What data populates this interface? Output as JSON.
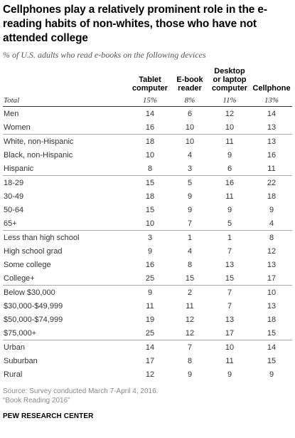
{
  "title": "Cellphones play a relatively prominent role in the e-reading habits of non-whites, those who have not attended college",
  "subtitle": "% of U.S. adults who read e-books on the following devices",
  "columns": {
    "tablet_l1": "Tablet",
    "tablet_l2": "computer",
    "ebook_l1": "E-book",
    "ebook_l2": "reader",
    "desktop_l1": "Desktop",
    "desktop_l2": "or laptop",
    "desktop_l3": "computer",
    "cell_l1": "Cellphone"
  },
  "total": {
    "label": "Total",
    "tablet": "15%",
    "ebook": "8%",
    "desktop": "11%",
    "cell": "13%"
  },
  "rows": [
    {
      "label": "Men",
      "tablet": "14",
      "ebook": "6",
      "desktop": "12",
      "cell": "14"
    },
    {
      "label": "Women",
      "tablet": "16",
      "ebook": "10",
      "desktop": "10",
      "cell": "13"
    },
    {
      "label": "White, non-Hispanic",
      "tablet": "18",
      "ebook": "10",
      "desktop": "11",
      "cell": "13"
    },
    {
      "label": "Black, non-Hispanic",
      "tablet": "10",
      "ebook": "4",
      "desktop": "9",
      "cell": "16"
    },
    {
      "label": "Hispanic",
      "tablet": "8",
      "ebook": "3",
      "desktop": "6",
      "cell": "11"
    },
    {
      "label": "18-29",
      "tablet": "15",
      "ebook": "5",
      "desktop": "16",
      "cell": "22"
    },
    {
      "label": "30-49",
      "tablet": "18",
      "ebook": "9",
      "desktop": "11",
      "cell": "18"
    },
    {
      "label": "50-64",
      "tablet": "15",
      "ebook": "9",
      "desktop": "9",
      "cell": "9"
    },
    {
      "label": "65+",
      "tablet": "10",
      "ebook": "7",
      "desktop": "5",
      "cell": "4"
    },
    {
      "label": "Less than high school",
      "tablet": "3",
      "ebook": "1",
      "desktop": "1",
      "cell": "8"
    },
    {
      "label": "High school grad",
      "tablet": "9",
      "ebook": "4",
      "desktop": "7",
      "cell": "12"
    },
    {
      "label": "Some college",
      "tablet": "16",
      "ebook": "8",
      "desktop": "13",
      "cell": "13"
    },
    {
      "label": "College+",
      "tablet": "25",
      "ebook": "15",
      "desktop": "15",
      "cell": "17"
    },
    {
      "label": "Below $30,000",
      "tablet": "9",
      "ebook": "2",
      "desktop": "7",
      "cell": "10"
    },
    {
      "label": "$30,000-$49,999",
      "tablet": "11",
      "ebook": "11",
      "desktop": "7",
      "cell": "13"
    },
    {
      "label": "$50,000-$74,999",
      "tablet": "19",
      "ebook": "12",
      "desktop": "13",
      "cell": "18"
    },
    {
      "label": "$75,000+",
      "tablet": "25",
      "ebook": "12",
      "desktop": "17",
      "cell": "15"
    },
    {
      "label": "Urban",
      "tablet": "14",
      "ebook": "7",
      "desktop": "10",
      "cell": "14"
    },
    {
      "label": "Suburban",
      "tablet": "17",
      "ebook": "8",
      "desktop": "11",
      "cell": "15"
    },
    {
      "label": "Rural",
      "tablet": "12",
      "ebook": "9",
      "desktop": "9",
      "cell": "9"
    }
  ],
  "source_line1": "Source: Survey conducted March 7-April 4, 2016.",
  "source_line2": "“Book Reading 2016”",
  "brand": "PEW RESEARCH CENTER"
}
